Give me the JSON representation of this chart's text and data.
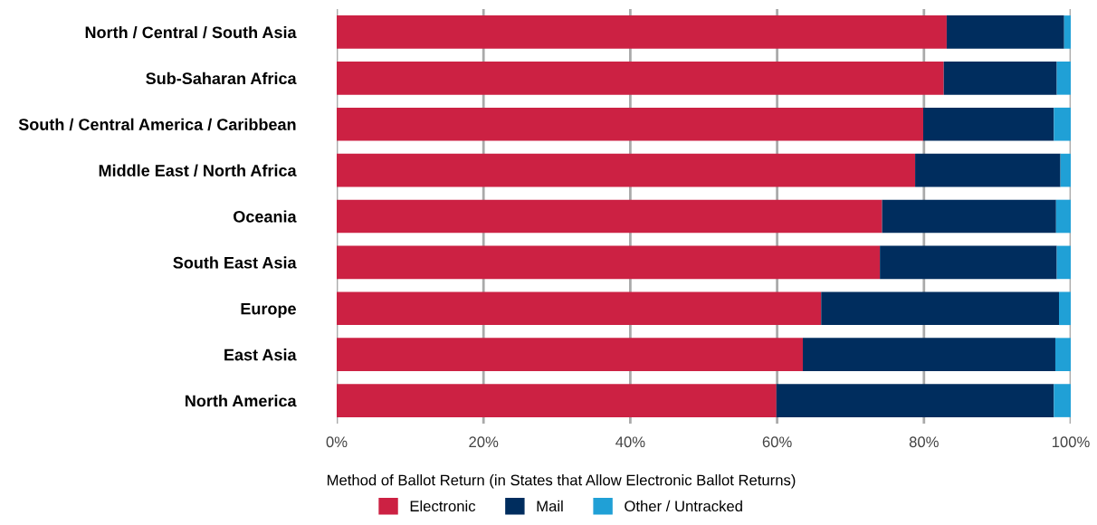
{
  "chart_data": {
    "type": "bar",
    "orientation": "horizontal",
    "stacked": true,
    "categories": [
      "North / Central / South Asia",
      "Sub-Saharan Africa",
      "South / Central America / Caribbean",
      "Middle East / North Africa",
      "Oceania",
      "South East Asia",
      "Europe",
      "East Asia",
      "North America"
    ],
    "series": [
      {
        "name": "Electronic",
        "color": "#cc2143",
        "values": [
          83.1,
          82.7,
          79.9,
          78.8,
          74.3,
          74.0,
          66.0,
          63.5,
          59.9
        ]
      },
      {
        "name": "Mail",
        "color": "#002d5e",
        "values": [
          16.0,
          15.4,
          17.8,
          19.8,
          23.7,
          24.1,
          32.4,
          34.4,
          37.8
        ]
      },
      {
        "name": "Other / Untracked",
        "color": "#20a0d6",
        "values": [
          0.9,
          1.9,
          2.3,
          1.4,
          2.0,
          1.9,
          1.6,
          2.1,
          2.3
        ]
      }
    ],
    "xlim": [
      0,
      100
    ],
    "xticks": [
      {
        "value": 0,
        "label": "0%"
      },
      {
        "value": 20,
        "label": "20%"
      },
      {
        "value": 40,
        "label": "40%"
      },
      {
        "value": 60,
        "label": "60%"
      },
      {
        "value": 80,
        "label": "80%"
      },
      {
        "value": 100,
        "label": "100%"
      }
    ],
    "legend_title": "Method of Ballot Return (in States that Allow Electronic Ballot Returns)",
    "legend": "bottom",
    "grid": "x"
  }
}
